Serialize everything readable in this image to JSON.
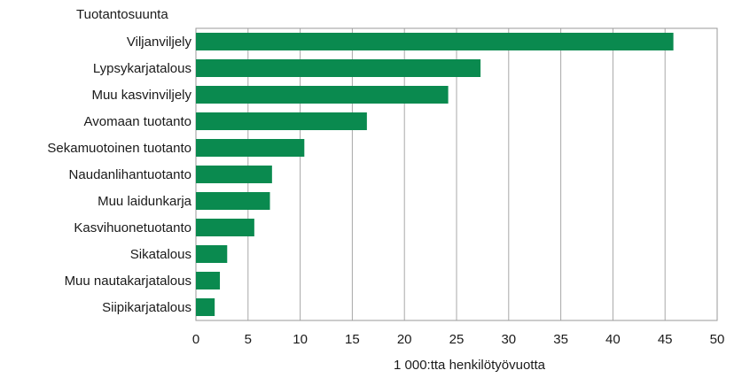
{
  "chart_data": {
    "type": "bar",
    "orientation": "horizontal",
    "title": "",
    "ylabel": "Tuotantosuunta",
    "xlabel": "1 000:tta henkilötyövuotta",
    "xlim": [
      0,
      50
    ],
    "xticks": [
      0,
      5,
      10,
      15,
      20,
      25,
      30,
      35,
      40,
      45,
      50
    ],
    "grid": true,
    "bar_color": "#0a8a4f",
    "categories": [
      "Viljanviljely",
      "Lypsykarjatalous",
      "Muu kasvinviljely",
      "Avomaan tuotanto",
      "Sekamuotoinen tuotanto",
      "Naudanlihantuotanto",
      "Muu laidunkarja",
      "Kasvihuonetuotanto",
      "Sikatalous",
      "Muu nautakarjatalous",
      "Siipikarjatalous"
    ],
    "values": [
      45.8,
      27.3,
      24.2,
      16.4,
      10.4,
      7.3,
      7.1,
      5.6,
      3.0,
      2.3,
      1.8
    ]
  }
}
